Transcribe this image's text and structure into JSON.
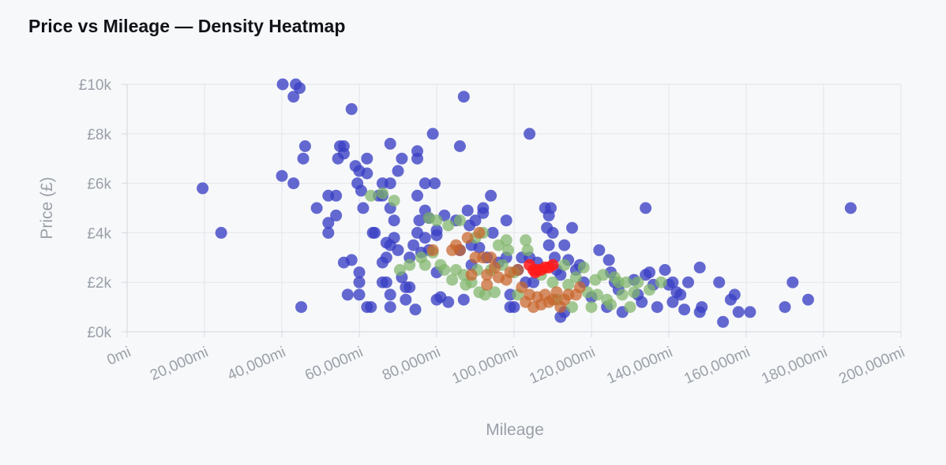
{
  "chart_data": {
    "type": "scatter",
    "title": "Price vs Mileage — Density Heatmap",
    "xlabel": "Mileage",
    "ylabel": "Price (£)",
    "xlim": [
      0,
      200000
    ],
    "ylim": [
      0,
      10000
    ],
    "x_ticks": [
      0,
      20000,
      40000,
      60000,
      80000,
      100000,
      120000,
      140000,
      160000,
      180000,
      200000
    ],
    "x_tick_labels": [
      "0mi",
      "20,000mi",
      "40,000mi",
      "60,000mi",
      "80,000mi",
      "100,000mi",
      "120,000mi",
      "140,000mi",
      "160,000mi",
      "180,000mi",
      "200,000mi"
    ],
    "y_ticks": [
      0,
      2000,
      4000,
      6000,
      8000,
      10000
    ],
    "y_tick_labels": [
      "£0k",
      "£2k",
      "£4k",
      "£6k",
      "£8k",
      "£10k"
    ],
    "grid": true,
    "color_scale": {
      "low": "#3a3fc4",
      "mid": "#7fb56a",
      "high_mid": "#c8642a",
      "high": "#ff1a1a"
    },
    "points": [
      [
        19500,
        5800,
        0
      ],
      [
        24300,
        4000,
        0
      ],
      [
        40200,
        10000,
        0
      ],
      [
        43600,
        10000,
        0
      ],
      [
        44600,
        9850,
        0
      ],
      [
        43000,
        9500,
        0
      ],
      [
        58000,
        9000,
        0
      ],
      [
        87000,
        9500,
        0
      ],
      [
        104000,
        8000,
        0
      ],
      [
        134000,
        5000,
        0
      ],
      [
        187000,
        5000,
        0
      ],
      [
        40000,
        6300,
        0
      ],
      [
        43000,
        6000,
        0
      ],
      [
        45500,
        7000,
        0
      ],
      [
        46000,
        7500,
        0
      ],
      [
        49000,
        5000,
        0
      ],
      [
        45000,
        1000,
        0
      ],
      [
        52000,
        5500,
        0
      ],
      [
        52000,
        4400,
        0
      ],
      [
        52000,
        4000,
        0
      ],
      [
        54000,
        5500,
        0
      ],
      [
        54000,
        4700,
        0
      ],
      [
        55000,
        7500,
        0
      ],
      [
        54500,
        7000,
        0
      ],
      [
        56000,
        7500,
        0
      ],
      [
        56000,
        7200,
        0
      ],
      [
        56000,
        2800,
        0
      ],
      [
        57000,
        1500,
        0
      ],
      [
        58000,
        2900,
        0
      ],
      [
        59000,
        6700,
        0
      ],
      [
        60000,
        6500,
        0
      ],
      [
        59500,
        6000,
        0
      ],
      [
        60500,
        5700,
        0
      ],
      [
        61000,
        5000,
        0
      ],
      [
        60000,
        2400,
        0
      ],
      [
        60000,
        2000,
        0
      ],
      [
        60000,
        1500,
        0
      ],
      [
        62000,
        1000,
        0
      ],
      [
        63000,
        1000,
        0
      ],
      [
        62000,
        7000,
        0
      ],
      [
        62000,
        6400,
        0
      ],
      [
        63500,
        4000,
        0
      ],
      [
        64000,
        4000,
        0
      ],
      [
        65000,
        5500,
        0
      ],
      [
        66000,
        6000,
        0
      ],
      [
        66000,
        5500,
        0
      ],
      [
        66000,
        2800,
        0
      ],
      [
        66000,
        2000,
        0
      ],
      [
        67000,
        3600,
        0
      ],
      [
        67000,
        3000,
        0
      ],
      [
        67000,
        2000,
        0
      ],
      [
        68000,
        7600,
        0
      ],
      [
        68000,
        6000,
        0
      ],
      [
        68000,
        5000,
        0
      ],
      [
        68000,
        3500,
        0
      ],
      [
        68000,
        1500,
        0
      ],
      [
        68000,
        1000,
        0
      ],
      [
        69000,
        4500,
        0
      ],
      [
        69000,
        3800,
        0
      ],
      [
        70000,
        6500,
        0
      ],
      [
        70000,
        3300,
        0
      ],
      [
        71000,
        7000,
        0
      ],
      [
        71000,
        2200,
        0
      ],
      [
        72000,
        1800,
        0
      ],
      [
        72000,
        1300,
        0
      ],
      [
        73000,
        3000,
        0
      ],
      [
        73000,
        1800,
        0
      ],
      [
        74000,
        3500,
        0
      ],
      [
        74500,
        900,
        0
      ],
      [
        75000,
        7300,
        0
      ],
      [
        75000,
        7000,
        0
      ],
      [
        75000,
        5500,
        0
      ],
      [
        75000,
        4000,
        0
      ],
      [
        75500,
        4500,
        0
      ],
      [
        76000,
        3200,
        0
      ],
      [
        77000,
        6000,
        0
      ],
      [
        77000,
        4900,
        0
      ],
      [
        77000,
        3800,
        0
      ],
      [
        78000,
        4600,
        0
      ],
      [
        78000,
        3300,
        0
      ],
      [
        79000,
        8000,
        0
      ],
      [
        79500,
        6000,
        0
      ],
      [
        80000,
        4100,
        0
      ],
      [
        80000,
        3900,
        0
      ],
      [
        80000,
        2400,
        0
      ],
      [
        80000,
        1300,
        0
      ],
      [
        81000,
        1400,
        0
      ],
      [
        82000,
        4700,
        0
      ],
      [
        83000,
        1200,
        0
      ],
      [
        85000,
        4500,
        0
      ],
      [
        86000,
        7500,
        0
      ],
      [
        86000,
        3300,
        0
      ],
      [
        87000,
        1300,
        0
      ],
      [
        88000,
        4900,
        0
      ],
      [
        88500,
        4300,
        0
      ],
      [
        89000,
        3500,
        0
      ],
      [
        89000,
        2700,
        0
      ],
      [
        90000,
        4500,
        0
      ],
      [
        91000,
        3400,
        0
      ],
      [
        92000,
        5000,
        0
      ],
      [
        92000,
        4800,
        0
      ],
      [
        93000,
        3000,
        0
      ],
      [
        94000,
        5500,
        0
      ],
      [
        94500,
        4000,
        0
      ],
      [
        96000,
        2800,
        0
      ],
      [
        98000,
        4500,
        0
      ],
      [
        98000,
        3000,
        0
      ],
      [
        99000,
        1500,
        0
      ],
      [
        99000,
        1000,
        0
      ],
      [
        100000,
        1000,
        0
      ],
      [
        101000,
        2500,
        0
      ],
      [
        102000,
        3000,
        0
      ],
      [
        103000,
        2000,
        0
      ],
      [
        104000,
        3000,
        0
      ],
      [
        105000,
        2000,
        0
      ],
      [
        106000,
        2800,
        0
      ],
      [
        108000,
        5000,
        0
      ],
      [
        108500,
        4200,
        0
      ],
      [
        109000,
        3500,
        0
      ],
      [
        109000,
        4700,
        0
      ],
      [
        109500,
        5000,
        0
      ],
      [
        110000,
        4000,
        0
      ],
      [
        110500,
        3000,
        0
      ],
      [
        111000,
        2500,
        0
      ],
      [
        112000,
        2300,
        0
      ],
      [
        112000,
        600,
        0
      ],
      [
        113000,
        800,
        0
      ],
      [
        113000,
        3500,
        0
      ],
      [
        114000,
        2900,
        0
      ],
      [
        115000,
        4200,
        0
      ],
      [
        116000,
        2500,
        0
      ],
      [
        117000,
        2700,
        0
      ],
      [
        118000,
        2000,
        0
      ],
      [
        120000,
        1400,
        0
      ],
      [
        122000,
        3300,
        0
      ],
      [
        124000,
        1000,
        0
      ],
      [
        124500,
        2900,
        0
      ],
      [
        125000,
        2400,
        0
      ],
      [
        126000,
        2000,
        0
      ],
      [
        127000,
        1700,
        0
      ],
      [
        128000,
        800,
        0
      ],
      [
        131000,
        2100,
        0
      ],
      [
        132000,
        1500,
        0
      ],
      [
        133000,
        1200,
        0
      ],
      [
        134000,
        2300,
        0
      ],
      [
        135000,
        2400,
        0
      ],
      [
        136000,
        1900,
        0
      ],
      [
        137000,
        1000,
        0
      ],
      [
        139000,
        2500,
        0
      ],
      [
        140000,
        1900,
        0
      ],
      [
        141000,
        2000,
        0
      ],
      [
        141000,
        1200,
        0
      ],
      [
        142000,
        1600,
        0
      ],
      [
        143000,
        1500,
        0
      ],
      [
        144000,
        900,
        0
      ],
      [
        145000,
        2000,
        0
      ],
      [
        148000,
        2600,
        0
      ],
      [
        148500,
        1000,
        0
      ],
      [
        148000,
        800,
        0
      ],
      [
        153000,
        2000,
        0
      ],
      [
        154000,
        400,
        0
      ],
      [
        156000,
        1300,
        0
      ],
      [
        157000,
        1500,
        0
      ],
      [
        158000,
        800,
        0
      ],
      [
        161000,
        800,
        0
      ],
      [
        170000,
        1000,
        0
      ],
      [
        172000,
        2000,
        0
      ],
      [
        176000,
        1300,
        0
      ],
      [
        63000,
        5500,
        1
      ],
      [
        66000,
        5600,
        1
      ],
      [
        69000,
        5300,
        1
      ],
      [
        70500,
        2500,
        1
      ],
      [
        73000,
        2700,
        1
      ],
      [
        76000,
        3000,
        1
      ],
      [
        77000,
        2700,
        1
      ],
      [
        78000,
        4600,
        1
      ],
      [
        79000,
        3200,
        1
      ],
      [
        80000,
        4500,
        1
      ],
      [
        81000,
        2700,
        1
      ],
      [
        82000,
        2500,
        1
      ],
      [
        83000,
        4300,
        1
      ],
      [
        84000,
        2100,
        1
      ],
      [
        85000,
        2500,
        1
      ],
      [
        86000,
        4500,
        1
      ],
      [
        87000,
        2300,
        1
      ],
      [
        87500,
        1900,
        1
      ],
      [
        89000,
        2000,
        1
      ],
      [
        90000,
        3800,
        1
      ],
      [
        90500,
        2500,
        1
      ],
      [
        91000,
        1600,
        1
      ],
      [
        92000,
        4000,
        1
      ],
      [
        92500,
        1500,
        1
      ],
      [
        94000,
        2500,
        1
      ],
      [
        95000,
        1600,
        1
      ],
      [
        96000,
        3500,
        1
      ],
      [
        97000,
        2700,
        1
      ],
      [
        98000,
        3700,
        1
      ],
      [
        98500,
        3300,
        1
      ],
      [
        100000,
        2400,
        1
      ],
      [
        101000,
        1500,
        1
      ],
      [
        103000,
        3700,
        1
      ],
      [
        103500,
        3300,
        1
      ],
      [
        107000,
        2300,
        1
      ],
      [
        110000,
        2000,
        1
      ],
      [
        111000,
        1300,
        1
      ],
      [
        113000,
        2700,
        1
      ],
      [
        114000,
        1900,
        1
      ],
      [
        115000,
        1000,
        1
      ],
      [
        116000,
        2200,
        1
      ],
      [
        118000,
        2600,
        1
      ],
      [
        119000,
        1600,
        1
      ],
      [
        120000,
        1000,
        1
      ],
      [
        121000,
        2100,
        1
      ],
      [
        121500,
        1500,
        1
      ],
      [
        123000,
        2300,
        1
      ],
      [
        124000,
        1300,
        1
      ],
      [
        125000,
        1100,
        1
      ],
      [
        126000,
        2200,
        1
      ],
      [
        127000,
        2000,
        1
      ],
      [
        128000,
        1500,
        1
      ],
      [
        129000,
        2000,
        1
      ],
      [
        130000,
        1000,
        1
      ],
      [
        131000,
        1600,
        1
      ],
      [
        132000,
        2000,
        1
      ],
      [
        135000,
        1700,
        1
      ],
      [
        138000,
        2000,
        1
      ],
      [
        79000,
        3300,
        2
      ],
      [
        84000,
        3300,
        2
      ],
      [
        85000,
        3500,
        2
      ],
      [
        86000,
        3300,
        2
      ],
      [
        88000,
        3800,
        2
      ],
      [
        89000,
        2300,
        2
      ],
      [
        90000,
        3000,
        2
      ],
      [
        91000,
        4000,
        2
      ],
      [
        92000,
        3000,
        2
      ],
      [
        93000,
        2300,
        2
      ],
      [
        93000,
        1900,
        2
      ],
      [
        94000,
        3000,
        2
      ],
      [
        95000,
        2600,
        2
      ],
      [
        96000,
        2200,
        2
      ],
      [
        98000,
        2100,
        2
      ],
      [
        99000,
        2400,
        2
      ],
      [
        101000,
        2500,
        2
      ],
      [
        102000,
        1800,
        2
      ],
      [
        103000,
        1200,
        2
      ],
      [
        104000,
        1500,
        2
      ],
      [
        105000,
        1000,
        2
      ],
      [
        106000,
        1400,
        2
      ],
      [
        107000,
        1100,
        2
      ],
      [
        108000,
        1500,
        2
      ],
      [
        109000,
        1200,
        2
      ],
      [
        110000,
        1300,
        2
      ],
      [
        111000,
        1600,
        2
      ],
      [
        112000,
        1000,
        2
      ],
      [
        113000,
        1300,
        2
      ],
      [
        114000,
        1500,
        2
      ],
      [
        116000,
        1500,
        2
      ],
      [
        117000,
        1800,
        2
      ],
      [
        104000,
        2700,
        3
      ],
      [
        105000,
        2500,
        3
      ],
      [
        105500,
        2400,
        3
      ],
      [
        106000,
        2500,
        3
      ],
      [
        107000,
        2500,
        3
      ],
      [
        108000,
        2600,
        3
      ],
      [
        109000,
        2600,
        3
      ],
      [
        110000,
        2700,
        3
      ]
    ]
  }
}
